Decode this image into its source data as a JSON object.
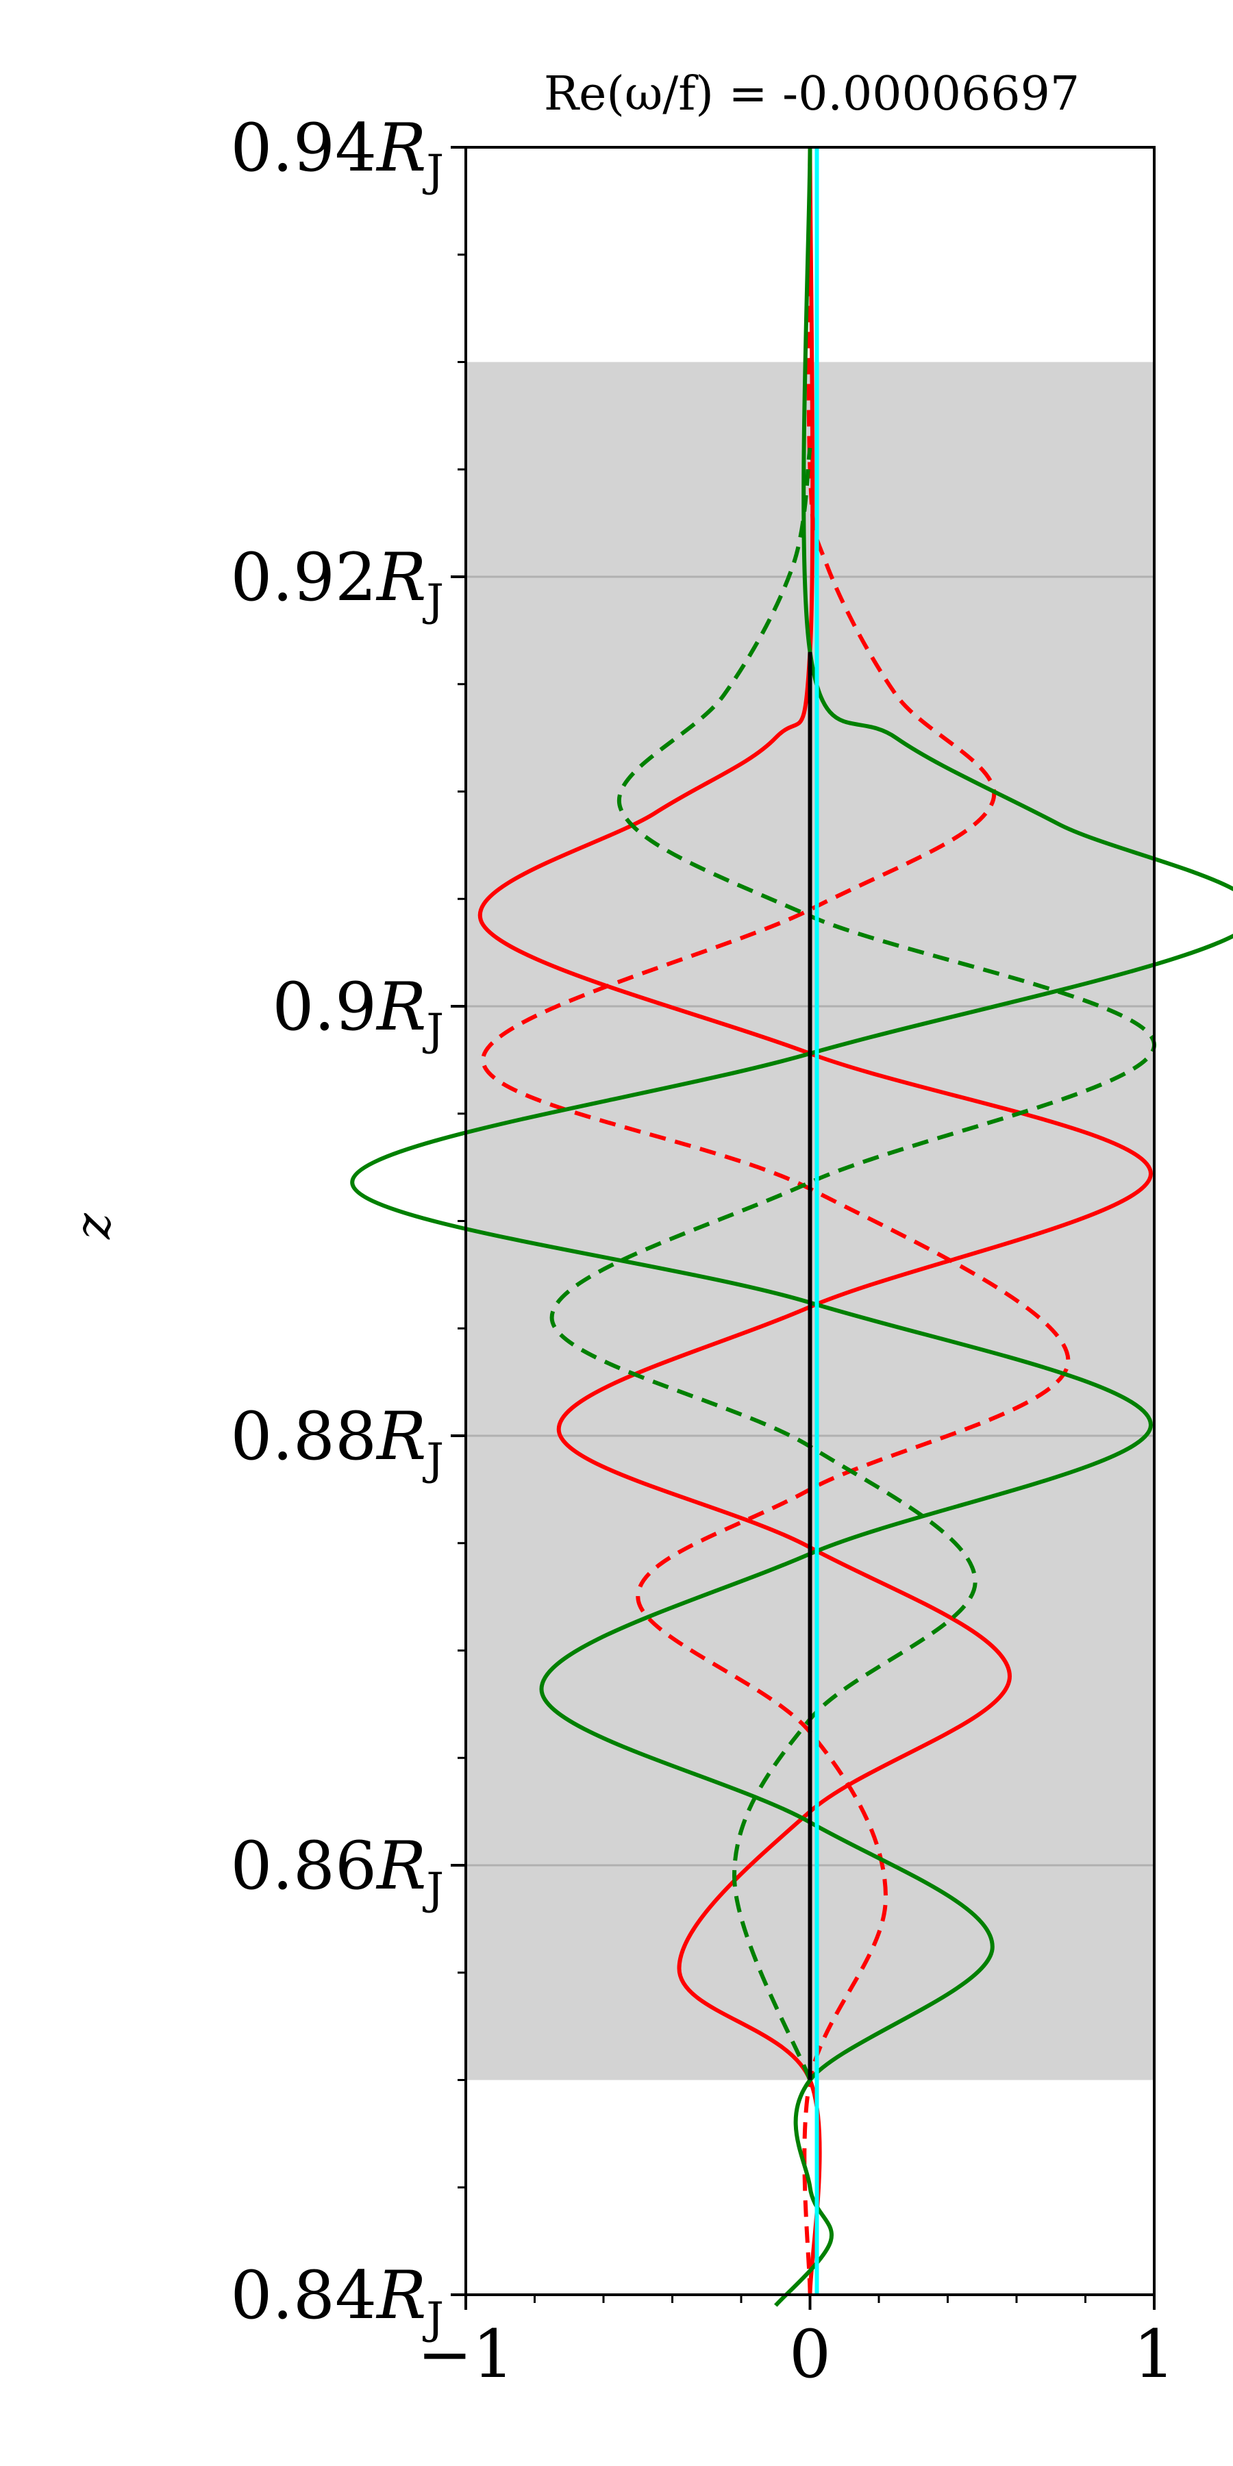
{
  "chart_data": {
    "type": "line",
    "title": "Re(ω/f) = -0.00006697",
    "xlabel": "",
    "ylabel": "z",
    "xlim": [
      -1,
      1
    ],
    "ylim": [
      0.84,
      0.94
    ],
    "x_ticks": [
      -1,
      0,
      1
    ],
    "x_tick_labels": [
      "−1",
      "0",
      "1"
    ],
    "y_ticks": [
      0.84,
      0.86,
      0.88,
      0.9,
      0.92,
      0.94
    ],
    "y_tick_labels": [
      "0.84",
      "0.86",
      "0.88",
      "0.9",
      "0.92",
      "0.94"
    ],
    "y_tick_suffix": "R",
    "y_tick_subscript": "J",
    "grid": "horizontal",
    "shaded_region": {
      "z_from": 0.85,
      "z_to": 0.93,
      "color": "#d3d3d3"
    },
    "colors": {
      "red": "#ff0000",
      "green": "#008000",
      "cyan": "#00ffff",
      "black": "#000000",
      "grid": "#b0b0b0"
    },
    "series": [
      {
        "color": "#ff0000",
        "style": "solid",
        "z": [
          0.84,
          0.85,
          0.8552,
          0.8625,
          0.8688,
          0.8748,
          0.8803,
          0.886,
          0.8922,
          0.8978,
          0.9038,
          0.909,
          0.9125,
          0.9165,
          0.94
        ],
        "x": [
          0,
          0,
          -0.38,
          0,
          0.58,
          0,
          -0.73,
          0,
          0.99,
          0,
          -0.95,
          -0.45,
          -0.1,
          0,
          0
        ]
      },
      {
        "color": "#ff0000",
        "style": "dashed",
        "z": [
          0.84,
          0.85,
          0.8585,
          0.8662,
          0.8725,
          0.8775,
          0.8835,
          0.8915,
          0.8975,
          0.9045,
          0.9095,
          0.9145,
          0.9205,
          0.925,
          0.94
        ],
        "x": [
          0,
          0,
          0.22,
          0,
          -0.5,
          0,
          0.75,
          0,
          -0.95,
          0,
          0.53,
          0.25,
          0.05,
          0,
          0
        ]
      },
      {
        "color": "#008000",
        "style": "solid",
        "z": [
          0.8395,
          0.8425,
          0.845,
          0.85,
          0.8562,
          0.862,
          0.8682,
          0.8745,
          0.8805,
          0.8862,
          0.8918,
          0.8978,
          0.9038,
          0.9085,
          0.9125,
          0.9165,
          0.94
        ],
        "x": [
          -0.1,
          0.06,
          0,
          0,
          0.53,
          0,
          -0.78,
          0,
          0.99,
          0,
          -1.33,
          0,
          1.28,
          0.72,
          0.25,
          0,
          0
        ]
      },
      {
        "color": "#008000",
        "style": "dashed",
        "z": [
          0.85,
          0.8595,
          0.8668,
          0.8732,
          0.8795,
          0.8855,
          0.8918,
          0.8982,
          0.9042,
          0.9092,
          0.9145,
          0.9205,
          0.926
        ],
        "x": [
          0,
          -0.22,
          0,
          0.48,
          0,
          -0.75,
          0,
          1.0,
          0,
          -0.55,
          -0.25,
          -0.05,
          0
        ]
      },
      {
        "color": "#00ffff",
        "style": "solid",
        "z": [
          0.84,
          0.94
        ],
        "x": [
          0.02,
          0.02
        ]
      },
      {
        "color": "#000000",
        "style": "solid",
        "z": [
          0.85,
          0.9165
        ],
        "x": [
          0,
          0
        ]
      }
    ]
  }
}
